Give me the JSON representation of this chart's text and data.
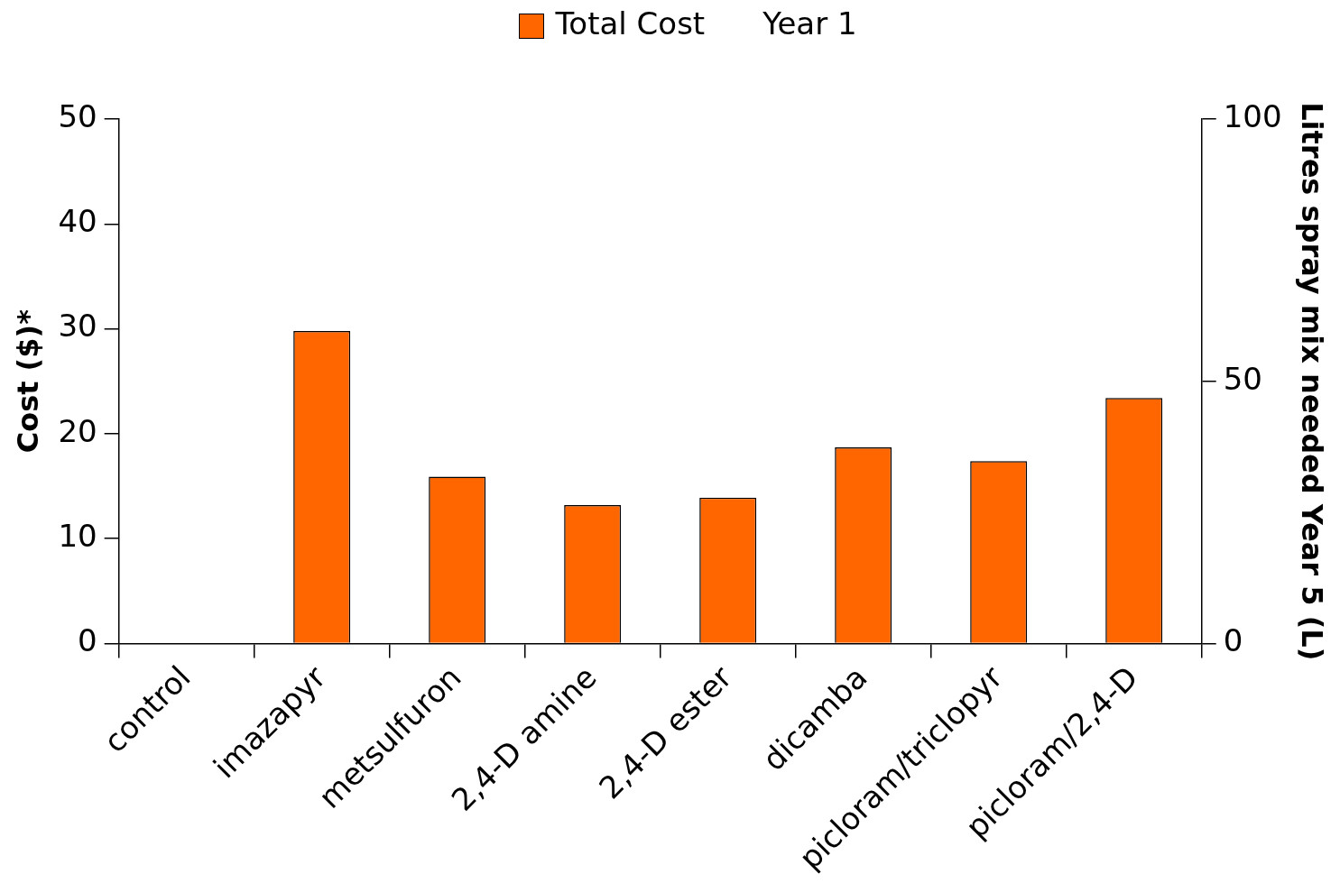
{
  "chart_data": {
    "type": "bar",
    "categories": [
      "control",
      "imazapyr",
      "metsulfuron",
      "2,4-D amine",
      "2,4-D ester",
      "dicamba",
      "picloram/triclopyr",
      "picloram/2,4-D"
    ],
    "series": [
      {
        "name": "Total Cost",
        "color": "#ff6600",
        "values": [
          0,
          29.8,
          15.9,
          13.2,
          13.9,
          18.7,
          17.4,
          23.4
        ]
      }
    ],
    "ylabel": "Cost ($)*",
    "y2label": "Litres spray mix needed Year 5 (L)",
    "ylim": [
      0,
      50
    ],
    "yticks": [
      0,
      10,
      20,
      30,
      40,
      50
    ],
    "y2lim": [
      0,
      100
    ],
    "y2ticks": [
      0,
      50,
      100
    ],
    "annotations": [
      "Year 1"
    ],
    "grid": false,
    "legend": "top"
  }
}
